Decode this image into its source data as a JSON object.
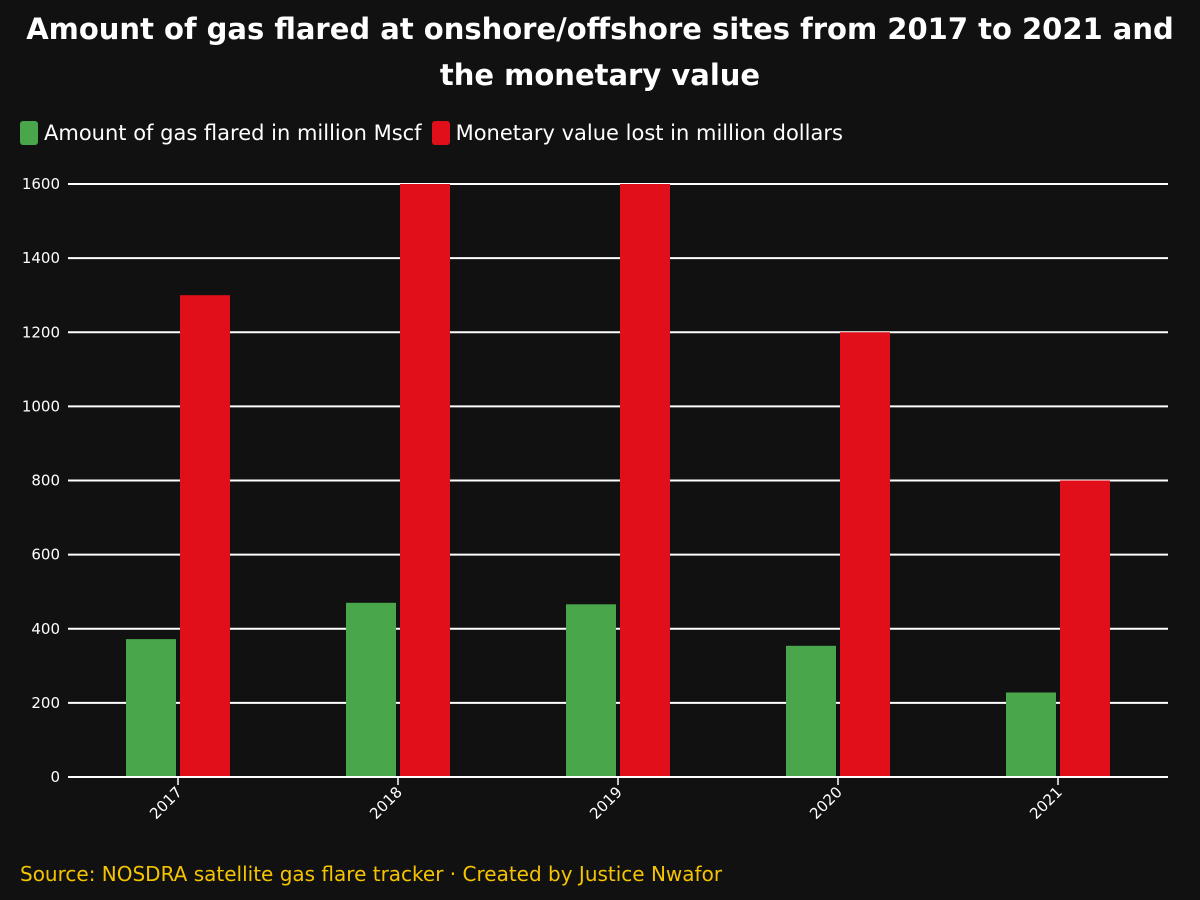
{
  "chart_data": {
    "type": "bar",
    "title": "Amount of gas flared at onshore/offshore sites from 2017 to 2021 and the monetary value",
    "categories": [
      "2017",
      "2018",
      "2019",
      "2020",
      "2021"
    ],
    "series": [
      {
        "name": "Amount of gas flared in million Mscf",
        "color": "#4aa64a",
        "values": [
          372,
          470,
          466,
          354,
          228
        ]
      },
      {
        "name": "Monetary value lost in million dollars",
        "color": "#e00f19",
        "values": [
          1300,
          1600,
          1600,
          1200,
          800
        ]
      }
    ],
    "ylim": [
      0,
      1600
    ],
    "yticks": [
      0,
      200,
      400,
      600,
      800,
      1000,
      1200,
      1400,
      1600
    ],
    "grid": true,
    "legend_position": "top-left",
    "xlabel": "",
    "ylabel": ""
  },
  "source": "Source: NOSDRA satellite gas flare tracker · Created by Justice Nwafor"
}
